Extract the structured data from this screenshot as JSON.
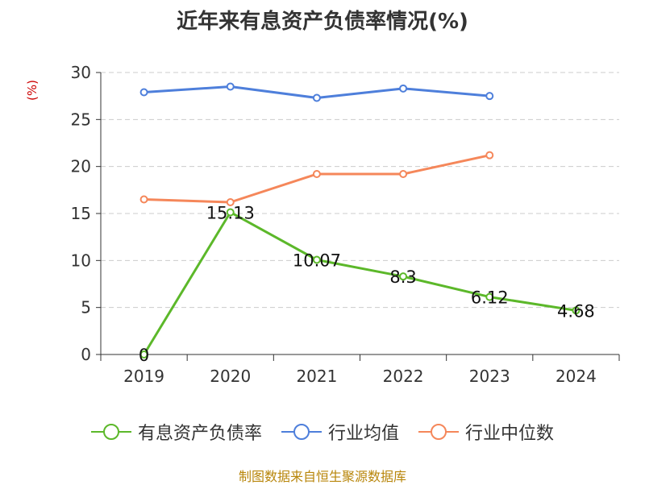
{
  "chart_data": {
    "type": "line",
    "title": "近年来有息资产负债率情况(%)",
    "ylabel": "(%)",
    "categories": [
      "2019",
      "2020",
      "2021",
      "2022",
      "2023",
      "2024"
    ],
    "ylim": [
      0,
      30
    ],
    "yticks": [
      0,
      5,
      10,
      15,
      20,
      25,
      30
    ],
    "grid": true,
    "legend_position": "bottom",
    "series": [
      {
        "name": "有息资产负债率",
        "color": "#5cb82a",
        "values": [
          0,
          15.13,
          10.07,
          8.3,
          6.12,
          4.68
        ],
        "labels": [
          "0",
          "15.13",
          "10.07",
          "8.3",
          "6.12",
          "4.68"
        ]
      },
      {
        "name": "行业均值",
        "color": "#4e7fdb",
        "values": [
          27.9,
          28.5,
          27.3,
          28.3,
          27.5,
          null
        ]
      },
      {
        "name": "行业中位数",
        "color": "#f5875a",
        "values": [
          16.5,
          16.2,
          19.2,
          19.2,
          21.2,
          null
        ]
      }
    ]
  },
  "source": "制图数据来自恒生聚源数据库"
}
